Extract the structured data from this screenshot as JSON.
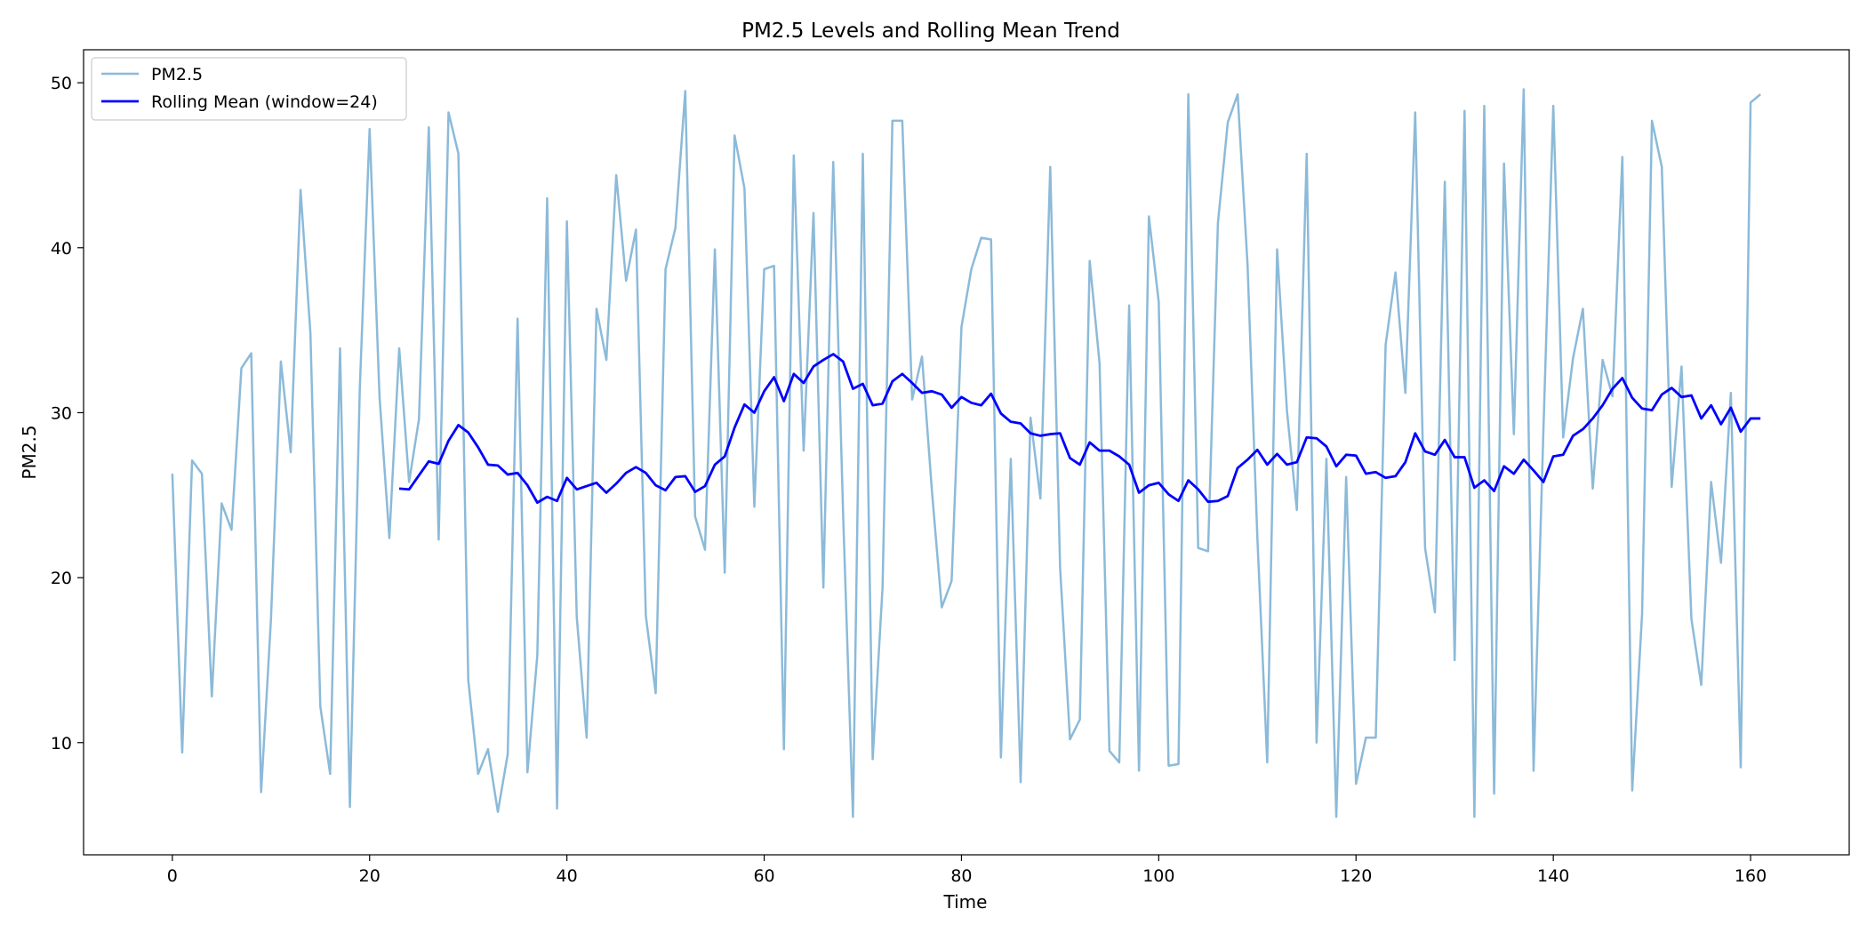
{
  "chart_data": {
    "type": "line",
    "title": "PM2.5 Levels and Rolling Mean Trend",
    "xlabel": "Time",
    "ylabel": "PM2.5",
    "xlim": [
      -9,
      170
    ],
    "ylim": [
      3.2,
      52
    ],
    "xticks": [
      0,
      20,
      40,
      60,
      80,
      100,
      120,
      140,
      160
    ],
    "yticks": [
      10,
      20,
      30,
      40,
      50
    ],
    "grid": false,
    "legend_position": "top-left",
    "series": [
      {
        "name": "PM2.5",
        "color": "#7fb3d5",
        "opacity": 0.9,
        "values": [
          26.3,
          9.4,
          27.1,
          26.3,
          12.8,
          24.5,
          22.9,
          32.7,
          33.6,
          7.0,
          17.5,
          33.1,
          27.6,
          43.5,
          34.8,
          12.2,
          8.1,
          33.9,
          6.1,
          31.4,
          47.2,
          31.0,
          22.4,
          33.9,
          25.8,
          29.6,
          47.3,
          22.3,
          48.2,
          45.7,
          13.8,
          8.1,
          9.6,
          5.8,
          9.3,
          35.7,
          8.2,
          15.3,
          43.0,
          6.0,
          41.6,
          17.6,
          10.3,
          36.3,
          33.2,
          44.4,
          38.0,
          41.1,
          17.7,
          13.0,
          38.7,
          41.2,
          49.5,
          23.7,
          21.7,
          39.9,
          20.3,
          46.8,
          43.6,
          24.3,
          38.7,
          38.9,
          9.6,
          45.6,
          27.7,
          42.1,
          19.4,
          45.2,
          23.9,
          5.5,
          45.7,
          9.0,
          19.4,
          47.7,
          47.7,
          30.8,
          33.4,
          25.3,
          18.2,
          19.8,
          35.2,
          38.7,
          40.6,
          40.5,
          9.1,
          27.2,
          7.6,
          29.7,
          24.8,
          44.9,
          20.6,
          10.2,
          11.4,
          39.2,
          33.0,
          9.5,
          8.8,
          36.5,
          8.3,
          41.9,
          36.7,
          8.6,
          8.7,
          49.3,
          21.8,
          21.6,
          41.5,
          47.6,
          49.3,
          39.0,
          22.4,
          8.8,
          39.9,
          30.1,
          24.1,
          45.7,
          10.0,
          27.2,
          5.5,
          26.1,
          7.5,
          10.3,
          10.3,
          34.1,
          38.5,
          31.2,
          48.2,
          21.8,
          17.9,
          44.0,
          15.0,
          48.3,
          5.5,
          48.6,
          6.9,
          45.1,
          28.7,
          49.6,
          8.3,
          29.0,
          48.6,
          28.5,
          33.3,
          36.3,
          25.4,
          33.2,
          31.0,
          45.5,
          7.1,
          17.8,
          47.7,
          44.9,
          25.5,
          32.8,
          17.5,
          13.5,
          25.8,
          20.9,
          31.2,
          8.5,
          48.8,
          49.3
        ]
      },
      {
        "name": "Rolling Mean (window=24)",
        "color": "#0000ff",
        "start_x": 23,
        "values": [
          25.4,
          25.35,
          26.2,
          27.05,
          26.9,
          28.3,
          29.25,
          28.8,
          27.9,
          26.85,
          26.8,
          26.25,
          26.35,
          25.6,
          24.55,
          24.9,
          24.65,
          26.05,
          25.35,
          25.55,
          25.75,
          25.15,
          25.7,
          26.35,
          26.7,
          26.35,
          25.6,
          25.3,
          26.1,
          26.15,
          25.2,
          25.55,
          26.85,
          27.35,
          29.1,
          30.5,
          30.0,
          31.3,
          32.15,
          30.7,
          32.35,
          31.8,
          32.8,
          33.2,
          33.55,
          33.1,
          31.45,
          31.75,
          30.45,
          30.55,
          31.9,
          32.35,
          31.8,
          31.2,
          31.3,
          31.1,
          30.3,
          30.95,
          30.6,
          30.45,
          31.15,
          29.95,
          29.45,
          29.35,
          28.75,
          28.6,
          28.7,
          28.75,
          27.25,
          26.85,
          28.2,
          27.7,
          27.7,
          27.35,
          26.85,
          25.15,
          25.6,
          25.75,
          25.05,
          24.65,
          25.9,
          25.35,
          24.6,
          24.65,
          24.95,
          26.65,
          27.15,
          27.75,
          26.85,
          27.5,
          26.85,
          27.0,
          28.5,
          28.45,
          27.95,
          26.75,
          27.45,
          27.4,
          26.3,
          26.4,
          26.05,
          26.15,
          27.0,
          28.75,
          27.65,
          27.45,
          28.35,
          27.3,
          27.3,
          25.45,
          25.9,
          25.25,
          26.75,
          26.3,
          27.15,
          26.5,
          25.8,
          27.35,
          27.45,
          28.6,
          29.0,
          29.65,
          30.45,
          31.45,
          32.1,
          30.9,
          30.25,
          30.15,
          31.1,
          31.5,
          30.95,
          31.05,
          29.65,
          30.45,
          29.3,
          30.3,
          28.85,
          29.65,
          29.65
        ]
      }
    ]
  }
}
